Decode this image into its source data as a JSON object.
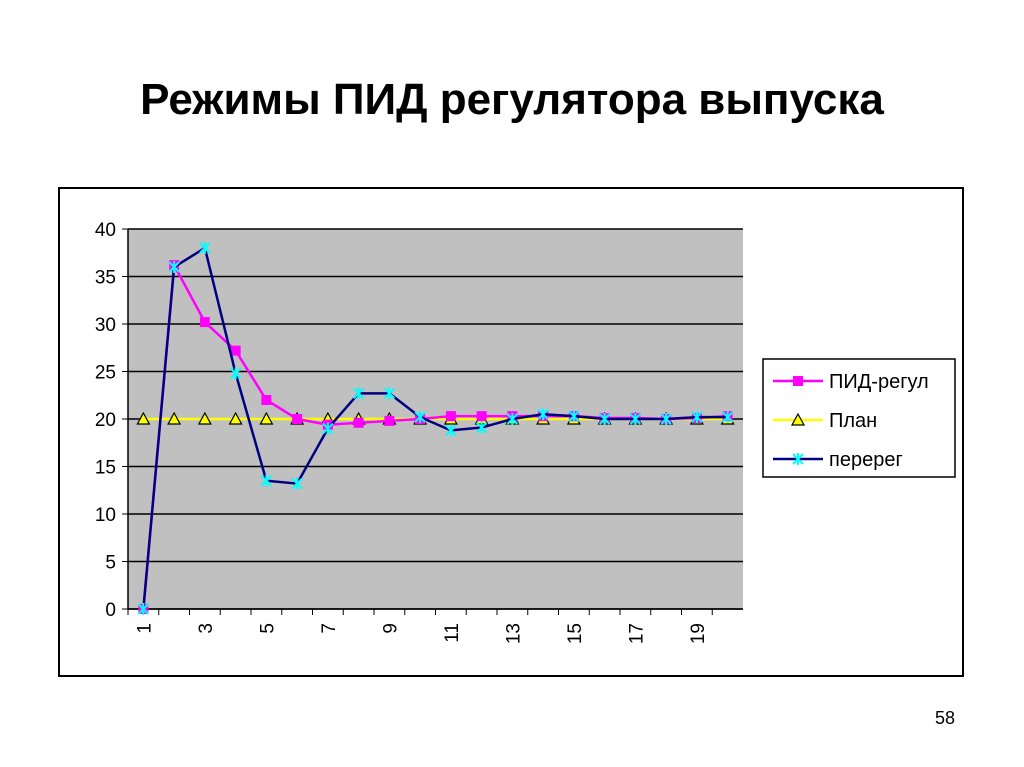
{
  "chart_data": {
    "type": "line",
    "title": "Режимы ПИД регулятора выпуска",
    "categories": [
      "1",
      null,
      "3",
      null,
      "5",
      null,
      "7",
      null,
      "9",
      null,
      "11",
      null,
      "13",
      null,
      "15",
      null,
      "17",
      null,
      "19",
      null
    ],
    "series": [
      {
        "name": "ПИД-регул",
        "color": "#ff00ff",
        "marker": "square",
        "marker_color": "#ff00ff",
        "values": [
          0,
          36.2,
          30.2,
          27.2,
          22,
          20,
          19.4,
          19.6,
          19.8,
          20,
          20.3,
          20.3,
          20.3,
          20.3,
          20.3,
          20.1,
          20.1,
          20,
          20.1,
          20.3
        ]
      },
      {
        "name": "План",
        "color": "#ffff00",
        "marker": "triangle",
        "marker_color": "#ffff00",
        "values": [
          20,
          20,
          20,
          20,
          20,
          20,
          20,
          20,
          20,
          20,
          20,
          20,
          20,
          20,
          20,
          20,
          20,
          20,
          20,
          20
        ]
      },
      {
        "name": "перерег",
        "color": "#000080",
        "marker": "star",
        "marker_color": "#00ffff",
        "values": [
          0,
          36,
          38,
          24.8,
          13.5,
          13.2,
          19,
          22.7,
          22.7,
          20.2,
          18.8,
          19.1,
          20,
          20.5,
          20.3,
          20,
          20,
          20,
          20.2,
          20.2
        ]
      }
    ],
    "ylim": [
      0,
      40
    ],
    "yticks": [
      0,
      5,
      10,
      15,
      20,
      25,
      30,
      35,
      40
    ],
    "grid": true,
    "plot_background": "#c0c0c0",
    "legend": "right"
  },
  "page_number": "58"
}
